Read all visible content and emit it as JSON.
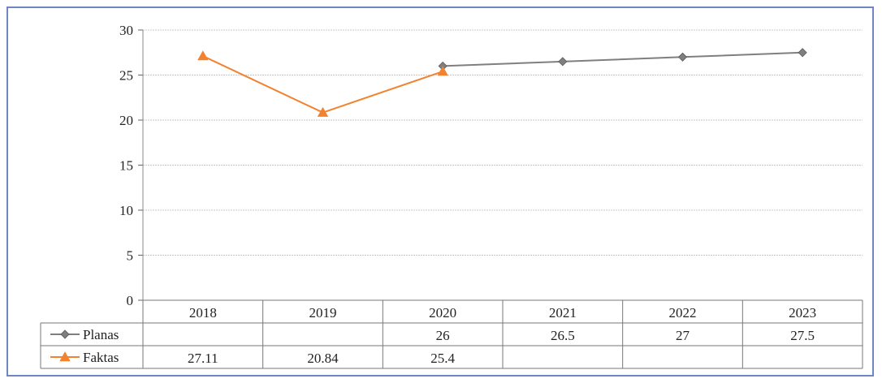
{
  "chart_data": {
    "type": "line",
    "categories": [
      "2018",
      "2019",
      "2020",
      "2021",
      "2022",
      "2023"
    ],
    "ylim": [
      0,
      30
    ],
    "yticks": [
      0,
      5,
      10,
      15,
      20,
      25,
      30
    ],
    "grid": true,
    "legend": "data-table",
    "series": [
      {
        "name": "Planas",
        "values": [
          null,
          null,
          26,
          26.5,
          27,
          27.5
        ],
        "table_labels": [
          "",
          "",
          "26",
          "26.5",
          "27",
          "27.5"
        ],
        "color": "#7f7f7f",
        "marker": "diamond"
      },
      {
        "name": "Faktas",
        "values": [
          27.11,
          20.84,
          25.4,
          null,
          null,
          null
        ],
        "table_labels": [
          "27.11",
          "20.84",
          "25.4",
          "",
          "",
          ""
        ],
        "color": "#f2822e",
        "marker": "triangle"
      }
    ]
  }
}
